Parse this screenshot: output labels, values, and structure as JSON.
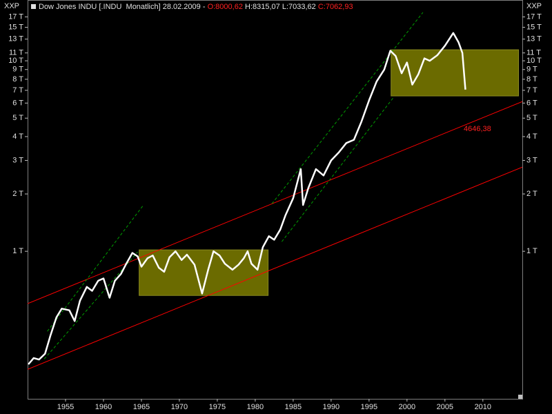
{
  "chart_data": {
    "type": "line",
    "title": "Dow Jones INDU [.INDU  Monatlich] 28.02.2009 -",
    "open_label": "O:8000,62",
    "high_label": "H:8315,07",
    "low_label": "L:7033,62",
    "close_label": "C:7062,93",
    "axis_label": "XXP",
    "annotation": "4646,38",
    "color": "#ffffff",
    "log_y": true,
    "xlim": [
      1950,
      2015.2
    ],
    "ylim": [
      168,
      17950
    ],
    "xticks": [
      1955,
      1960,
      1965,
      1970,
      1975,
      1980,
      1985,
      1990,
      1995,
      2000,
      2005,
      2010
    ],
    "yticks": [
      {
        "value": 1000,
        "label": "1 T"
      },
      {
        "value": 2000,
        "label": "2 T"
      },
      {
        "value": 3000,
        "label": "3 T"
      },
      {
        "value": 4000,
        "label": "4 T"
      },
      {
        "value": 5000,
        "label": "5 T"
      },
      {
        "value": 6000,
        "label": "6 T"
      },
      {
        "value": 7000,
        "label": "7 T"
      },
      {
        "value": 8000,
        "label": "8 T"
      },
      {
        "value": 9000,
        "label": "9 T"
      },
      {
        "value": 10000,
        "label": "10 T"
      },
      {
        "value": 11000,
        "label": "11 T"
      },
      {
        "value": 13000,
        "label": "13 T"
      },
      {
        "value": 15000,
        "label": "15 T"
      },
      {
        "value": 17000,
        "label": "17 T"
      }
    ],
    "x": [
      1950.1,
      1950.8,
      1951.5,
      1952.3,
      1953,
      1953.8,
      1954.5,
      1955.5,
      1956.2,
      1956.9,
      1957.8,
      1958.5,
      1959.3,
      1960,
      1960.8,
      1961.5,
      1962.3,
      1963,
      1963.8,
      1964.5,
      1965,
      1965.8,
      1966.5,
      1967.3,
      1968,
      1968.7,
      1969.5,
      1970.3,
      1971,
      1972,
      1973,
      1973.8,
      1974.5,
      1975.3,
      1976,
      1977,
      1977.8,
      1978.5,
      1979,
      1979.5,
      1980.3,
      1981,
      1981.8,
      1982.5,
      1983.3,
      1984,
      1985,
      1986,
      1986.3,
      1987,
      1988,
      1989,
      1990,
      1991,
      1992,
      1993,
      1994,
      1995,
      1996,
      1997,
      1997.8,
      1998.5,
      1999.3,
      2000,
      2000.7,
      2001.5,
      2002.3,
      2003,
      2004,
      2005,
      2006.1,
      2006.8,
      2007.3,
      2007.7
    ],
    "values": [
      255,
      275,
      270,
      290,
      360,
      450,
      500,
      490,
      430,
      550,
      650,
      620,
      700,
      720,
      570,
      700,
      760,
      860,
      980,
      940,
      830,
      920,
      950,
      820,
      780,
      930,
      1000,
      900,
      960,
      850,
      600,
      800,
      1000,
      950,
      860,
      800,
      850,
      920,
      1000,
      860,
      800,
      1050,
      1200,
      1150,
      1300,
      1550,
      1900,
      2700,
      1750,
      2150,
      2700,
      2500,
      3000,
      3300,
      3700,
      3850,
      4800,
      6200,
      7800,
      9000,
      11300,
      10600,
      8600,
      9800,
      7500,
      8500,
      10300,
      10000,
      10700,
      12000,
      14000,
      12500,
      11000,
      7060
    ],
    "boxes": [
      {
        "x": [
          1964.7,
          1981.7
        ],
        "y": [
          586,
          1017
        ],
        "color": "#6b6b00"
      },
      {
        "x": [
          1997.9,
          2014.7
        ],
        "y": [
          6540,
          11430
        ],
        "color": "#6b6b00"
      }
    ],
    "trendlines": [
      {
        "x": [
          1950,
          2015.2
        ],
        "y": [
          531,
          6110
        ],
        "color": "#ff0000"
      },
      {
        "x": [
          1950,
          2015.2
        ],
        "y": [
          240,
          2767
        ],
        "color": "#ff0000"
      },
      {
        "x": [
          1952.6,
          1965.2
        ],
        "y": [
          380,
          1734
        ],
        "color": "#00a000"
      },
      {
        "x": [
          1952.2,
          1964.5
        ],
        "y": [
          272,
          992
        ],
        "color": "#00a000"
      },
      {
        "x": [
          1982.2,
          2002.1
        ],
        "y": [
          1778,
          17950
        ],
        "color": "#00a000"
      },
      {
        "x": [
          1983.5,
          1998.3
        ],
        "y": [
          1123,
          6480
        ],
        "color": "#00a000"
      }
    ]
  }
}
